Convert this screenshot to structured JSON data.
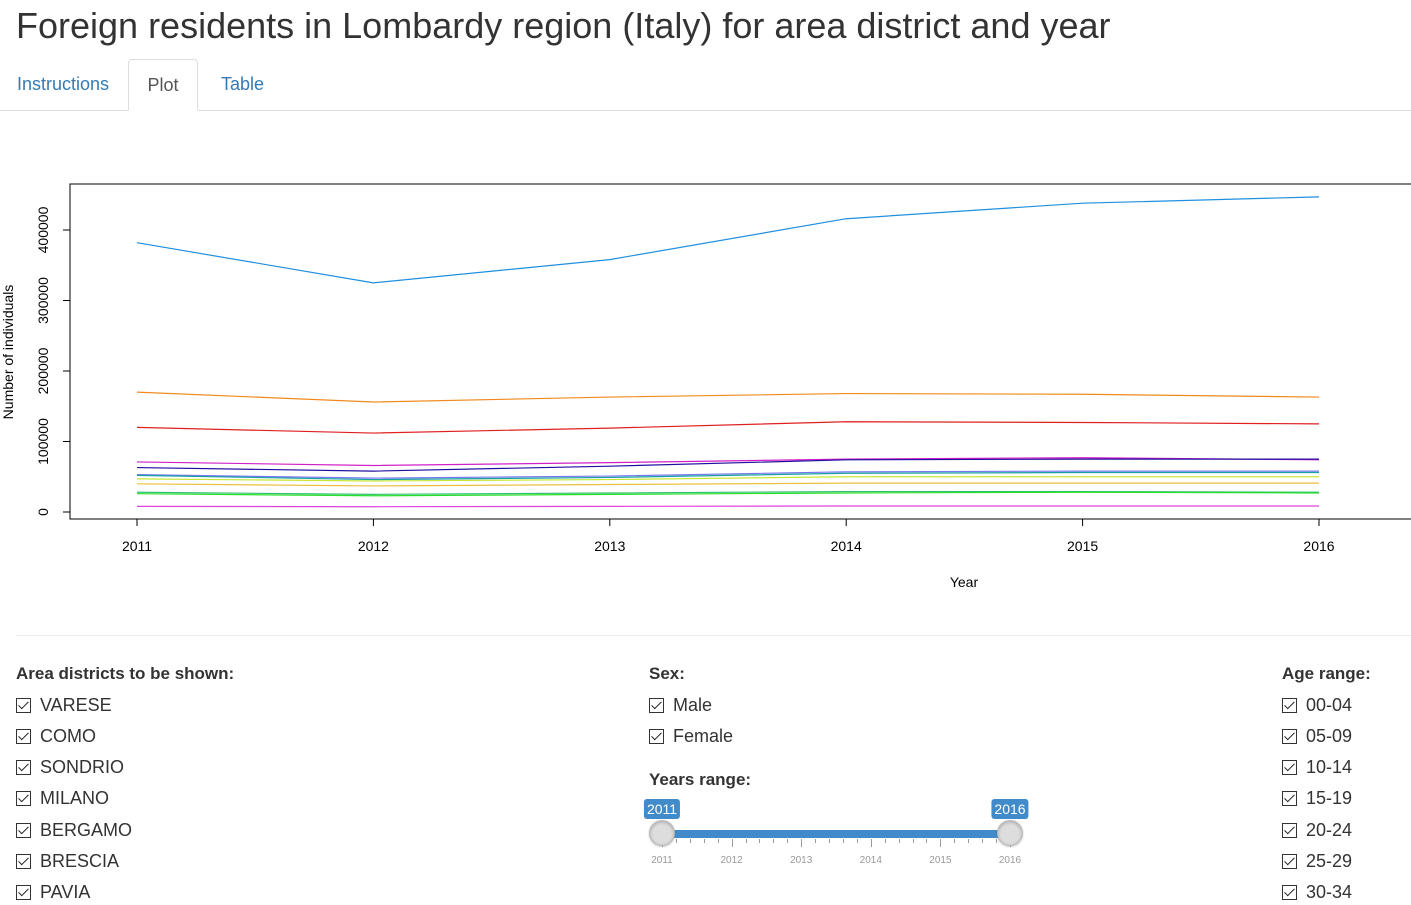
{
  "page": {
    "title": "Foreign residents in Lombardy region (Italy) for area district and year"
  },
  "tabs": [
    {
      "label": "Instructions",
      "active": false
    },
    {
      "label": "Plot",
      "active": true
    },
    {
      "label": "Table",
      "active": false
    }
  ],
  "chart_data": {
    "type": "line",
    "title": "",
    "xlabel": "Year",
    "ylabel": "Number of individuals",
    "x": [
      2011,
      2012,
      2013,
      2014,
      2015,
      2016
    ],
    "xlim": [
      2011,
      2016
    ],
    "ylim": [
      0,
      450000
    ],
    "y_ticks": [
      0,
      100000,
      200000,
      300000,
      400000
    ],
    "grid": false,
    "legend": "none",
    "series": [
      {
        "color": "#1f8fe0",
        "values": [
          382000,
          325000,
          358000,
          416000,
          438000,
          447000
        ]
      },
      {
        "color": "#f08a1c",
        "values": [
          170000,
          156000,
          163000,
          168000,
          167000,
          163000
        ]
      },
      {
        "color": "#e02020",
        "values": [
          120000,
          112000,
          119000,
          128000,
          127000,
          125000
        ]
      },
      {
        "color": "#d020c8",
        "values": [
          71000,
          66000,
          70000,
          75000,
          77000,
          74000
        ]
      },
      {
        "color": "#2010a0",
        "values": [
          63000,
          58000,
          65000,
          74000,
          75000,
          75000
        ]
      },
      {
        "color": "#7878f0",
        "values": [
          53000,
          48000,
          51000,
          57000,
          58000,
          58000
        ]
      },
      {
        "color": "#18a0a0",
        "values": [
          52000,
          46000,
          49000,
          55000,
          56000,
          56000
        ]
      },
      {
        "color": "#c8e838",
        "values": [
          47000,
          44000,
          46000,
          50000,
          50000,
          50000
        ]
      },
      {
        "color": "#e8c040",
        "values": [
          40000,
          37000,
          39000,
          41000,
          41000,
          41000
        ]
      },
      {
        "color": "#30c070",
        "values": [
          28000,
          25000,
          27000,
          29000,
          29000,
          28000
        ]
      },
      {
        "color": "#28e028",
        "values": [
          26000,
          23000,
          25000,
          27000,
          28000,
          27000
        ]
      },
      {
        "color": "#e040e0",
        "values": [
          8000,
          7500,
          8000,
          8500,
          8500,
          8500
        ]
      }
    ]
  },
  "controls": {
    "districts": {
      "label": "Area districts to be shown:",
      "items": [
        "VARESE",
        "COMO",
        "SONDRIO",
        "MILANO",
        "BERGAMO",
        "BRESCIA",
        "PAVIA"
      ]
    },
    "sex": {
      "label": "Sex:",
      "items": [
        "Male",
        "Female"
      ]
    },
    "years": {
      "label": "Years range:",
      "min": 2011,
      "max": 2016,
      "from": 2011,
      "to": 2016,
      "from_label": "2011",
      "to_label": "2016",
      "tick_labels": [
        "2011",
        "2012",
        "2013",
        "2014",
        "2015",
        "2016"
      ]
    },
    "age": {
      "label": "Age range:",
      "items": [
        "00-04",
        "05-09",
        "10-14",
        "15-19",
        "20-24",
        "25-29",
        "30-34"
      ]
    }
  }
}
